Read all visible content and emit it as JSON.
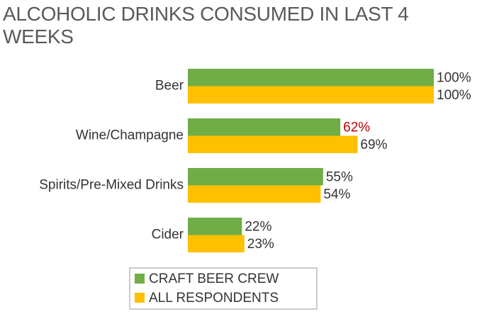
{
  "chart_data": {
    "type": "hbar",
    "title": "ALCOHOLIC DRINKS CONSUMED IN LAST 4 WEEKS",
    "categories": [
      "Beer",
      "Wine/Champagne",
      "Spirits/Pre-Mixed Drinks",
      "Cider"
    ],
    "series": [
      {
        "name": "CRAFT BEER CREW",
        "color": "#70ad47",
        "values": [
          100,
          62,
          55,
          22
        ],
        "value_labels": [
          "100%",
          "62%",
          "55%",
          "22%"
        ],
        "value_label_colors": [
          "#333333",
          "#c00000",
          "#333333",
          "#333333"
        ]
      },
      {
        "name": "ALL RESPONDENTS",
        "color": "#ffc000",
        "values": [
          100,
          69,
          54,
          23
        ],
        "value_labels": [
          "100%",
          "69%",
          "54%",
          "23%"
        ],
        "value_label_colors": [
          "#333333",
          "#333333",
          "#333333",
          "#333333"
        ]
      }
    ],
    "xlim": [
      0,
      100
    ],
    "legend": "bottom"
  }
}
